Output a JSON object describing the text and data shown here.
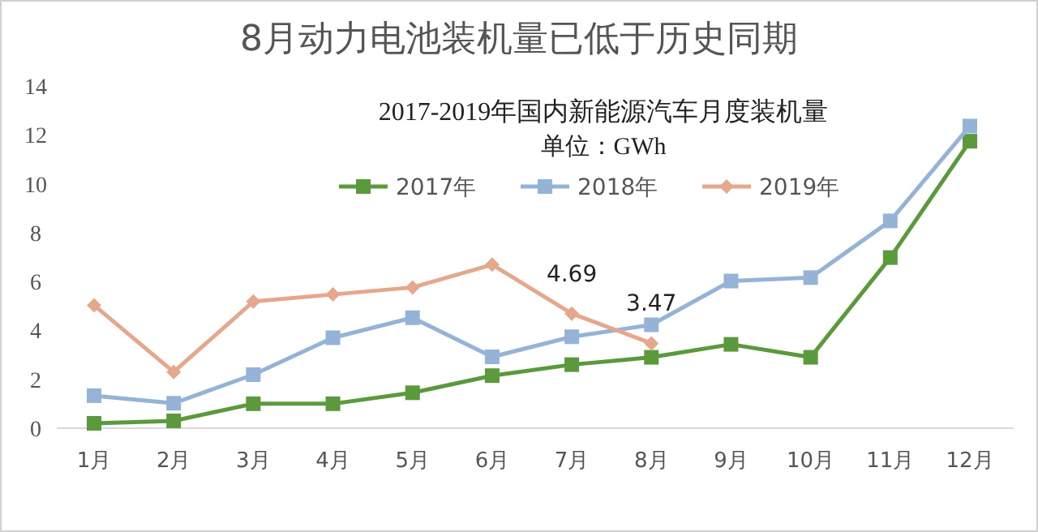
{
  "chart_data": {
    "type": "line",
    "title": "8月动力电池装机量已低于历史同期",
    "subtitle": "2017-2019年国内新能源汽车月度装机量",
    "annotations": [
      "单位：GWh"
    ],
    "categories": [
      "1月",
      "2月",
      "3月",
      "4月",
      "5月",
      "6月",
      "7月",
      "8月",
      "9月",
      "10月",
      "11月",
      "12月"
    ],
    "series": [
      {
        "name": "2017年",
        "color": "#5b9a3c",
        "marker": "square",
        "values": [
          0.2,
          0.3,
          1.0,
          1.0,
          1.45,
          2.15,
          2.6,
          2.9,
          3.43,
          2.9,
          6.98,
          11.74
        ]
      },
      {
        "name": "2018年",
        "color": "#95b3d7",
        "marker": "square",
        "values": [
          1.33,
          1.02,
          2.19,
          3.7,
          4.52,
          2.92,
          3.74,
          4.23,
          6.02,
          6.16,
          8.48,
          12.36
        ]
      },
      {
        "name": "2019年",
        "color": "#e6a88c",
        "marker": "diamond",
        "values": [
          5.03,
          2.3,
          5.18,
          5.47,
          5.76,
          6.69,
          4.69,
          3.47,
          null,
          null,
          null,
          null
        ],
        "value_labels": [
          null,
          null,
          null,
          null,
          null,
          null,
          "4.69",
          "3.47",
          null,
          null,
          null,
          null
        ]
      }
    ],
    "ylim": [
      0,
      14
    ],
    "yticks": [
      0,
      2,
      4,
      6,
      8,
      10,
      12,
      14
    ],
    "grid": false,
    "legend": "top"
  }
}
